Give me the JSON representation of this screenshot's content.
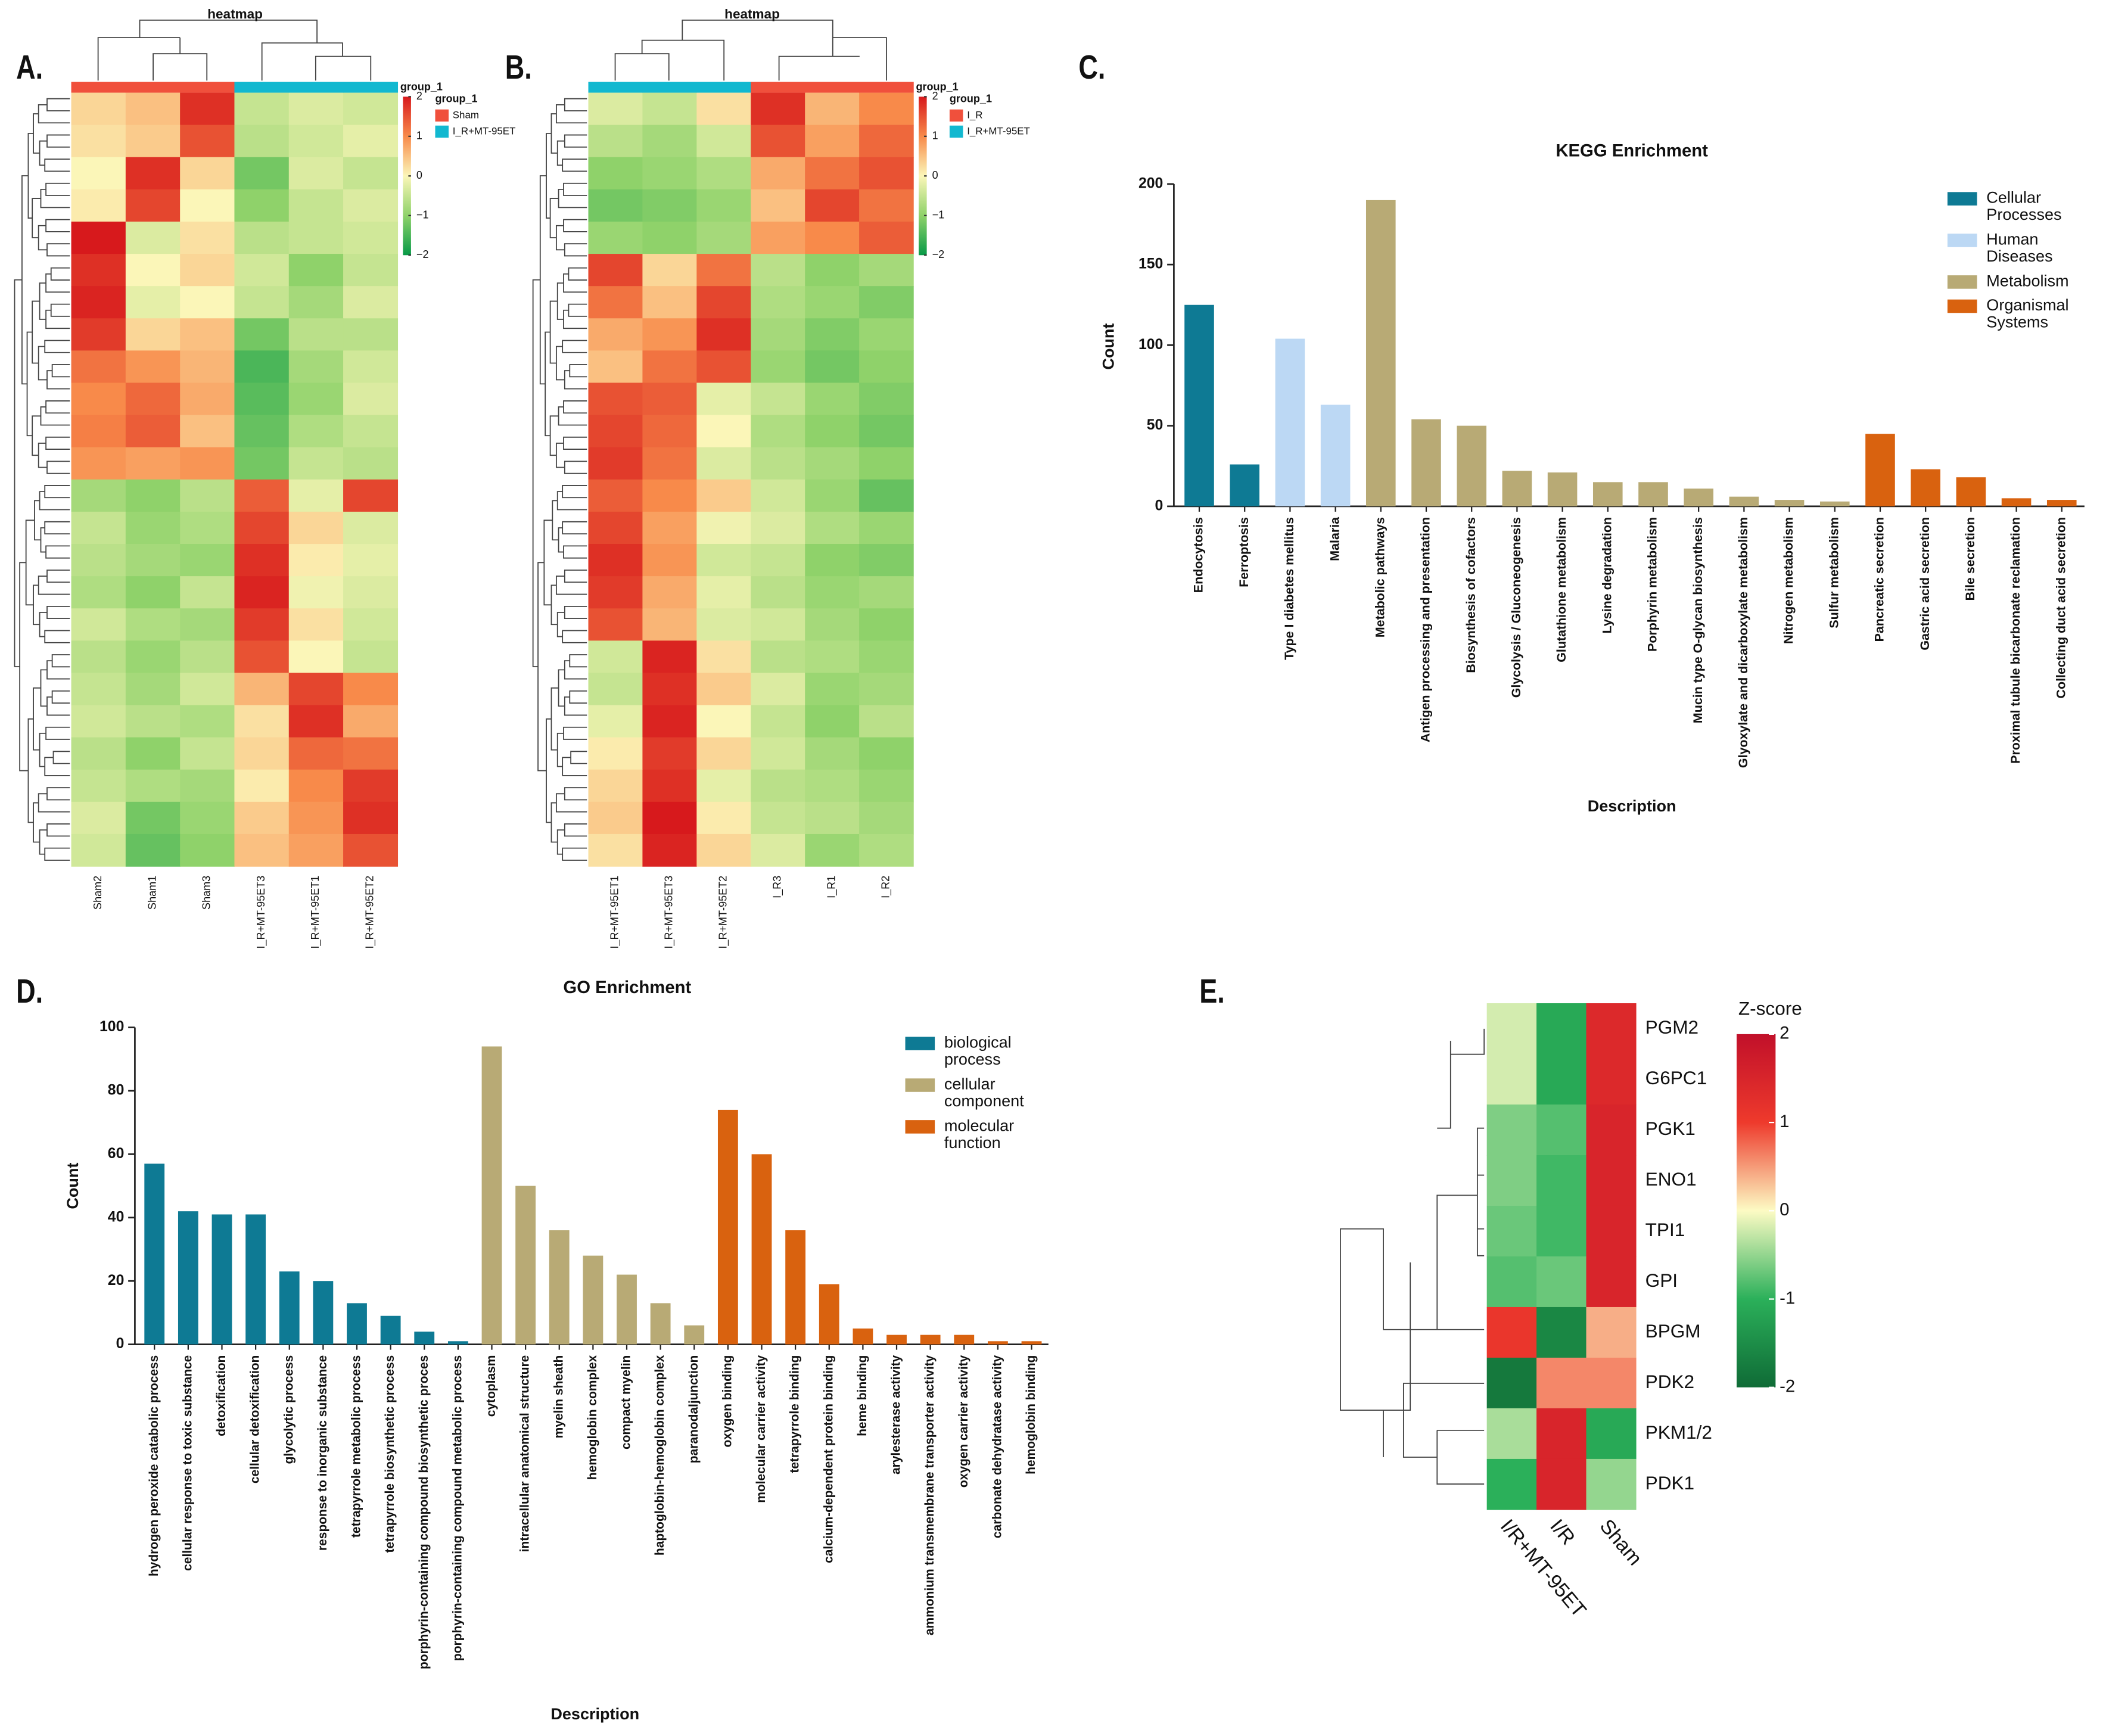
{
  "chart_data": [
    {
      "type": "heatmap",
      "panel": "A.",
      "title": "heatmap",
      "x": [
        "Sham2",
        "Sham1",
        "Sham3",
        "I_R+MT-95ET3",
        "I_R+MT-95ET1",
        "I_R+MT-95ET2"
      ],
      "group_label": "group_1",
      "legend": [
        {
          "name": "Sham",
          "color": "#f0503c"
        },
        {
          "name": "I_R+MT-95ET",
          "color": "#12b8d0"
        }
      ],
      "column_group": [
        0,
        0,
        0,
        1,
        1,
        1
      ],
      "z": [
        [
          0.3,
          0.5,
          1.8,
          -0.5,
          -0.3,
          -0.4
        ],
        [
          0.2,
          0.4,
          1.5,
          -0.6,
          -0.4,
          -0.2
        ],
        [
          0.0,
          1.8,
          0.3,
          -1.2,
          -0.3,
          -0.5
        ],
        [
          0.1,
          1.6,
          0.0,
          -1.0,
          -0.5,
          -0.3
        ],
        [
          2.0,
          -0.3,
          0.2,
          -0.6,
          -0.5,
          -0.4
        ],
        [
          1.8,
          0.0,
          0.3,
          -0.4,
          -1.0,
          -0.5
        ],
        [
          1.9,
          -0.2,
          0.0,
          -0.5,
          -0.8,
          -0.3
        ],
        [
          1.7,
          0.3,
          0.5,
          -1.2,
          -0.6,
          -0.6
        ],
        [
          1.2,
          0.9,
          0.6,
          -1.5,
          -0.8,
          -0.4
        ],
        [
          1.0,
          1.3,
          0.7,
          -1.4,
          -0.9,
          -0.3
        ],
        [
          1.1,
          1.4,
          0.5,
          -1.3,
          -0.7,
          -0.5
        ],
        [
          0.9,
          0.8,
          0.9,
          -1.2,
          -0.5,
          -0.6
        ],
        [
          -0.8,
          -1.0,
          -0.6,
          1.4,
          -0.2,
          1.6
        ],
        [
          -0.5,
          -0.9,
          -0.7,
          1.6,
          0.3,
          -0.3
        ],
        [
          -0.6,
          -0.8,
          -0.9,
          1.8,
          0.1,
          -0.2
        ],
        [
          -0.7,
          -1.0,
          -0.5,
          1.9,
          -0.1,
          -0.3
        ],
        [
          -0.4,
          -0.7,
          -0.8,
          1.7,
          0.2,
          -0.4
        ],
        [
          -0.6,
          -0.9,
          -0.6,
          1.5,
          0.0,
          -0.5
        ],
        [
          -0.5,
          -0.8,
          -0.4,
          0.6,
          1.6,
          1.0
        ],
        [
          -0.4,
          -0.6,
          -0.7,
          0.2,
          1.8,
          0.7
        ],
        [
          -0.6,
          -1.0,
          -0.5,
          0.3,
          1.3,
          1.2
        ],
        [
          -0.5,
          -0.7,
          -0.8,
          0.1,
          1.0,
          1.7
        ],
        [
          -0.3,
          -1.2,
          -0.9,
          0.4,
          0.9,
          1.8
        ],
        [
          -0.4,
          -1.3,
          -1.0,
          0.5,
          0.8,
          1.5
        ]
      ],
      "zlim": [
        -2,
        2
      ],
      "zticks": [
        2,
        1,
        0,
        {
          "value": -1,
          "label": "−1"
        },
        {
          "value": -2,
          "label": "−2"
        }
      ],
      "colors": [
        "#079a47",
        "#8fd26a",
        "#fbf6b8",
        "#f88a4a",
        "#d7191c"
      ]
    },
    {
      "type": "heatmap",
      "panel": "B.",
      "title": "heatmap",
      "x": [
        "I_R+MT-95ET1",
        "I_R+MT-95ET3",
        "I_R+MT-95ET2",
        "I_R3",
        "I_R1",
        "I_R2"
      ],
      "group_label": "group_1",
      "legend": [
        {
          "name": "I_R",
          "color": "#f0503c"
        },
        {
          "name": "I_R+MT-95ET",
          "color": "#12b8d0"
        }
      ],
      "column_group": [
        1,
        1,
        1,
        0,
        0,
        0
      ],
      "z": [
        [
          -0.3,
          -0.5,
          0.2,
          1.8,
          0.6,
          1.0
        ],
        [
          -0.6,
          -0.8,
          -0.4,
          1.5,
          0.8,
          1.3
        ],
        [
          -1.0,
          -0.9,
          -0.7,
          0.7,
          1.2,
          1.5
        ],
        [
          -1.2,
          -1.1,
          -0.9,
          0.5,
          1.6,
          1.2
        ],
        [
          -0.9,
          -1.0,
          -0.8,
          0.8,
          1.0,
          1.4
        ],
        [
          1.6,
          0.3,
          1.2,
          -0.6,
          -1.0,
          -0.8
        ],
        [
          1.2,
          0.5,
          1.6,
          -0.7,
          -0.9,
          -1.1
        ],
        [
          0.7,
          0.9,
          1.8,
          -0.8,
          -1.1,
          -0.9
        ],
        [
          0.5,
          1.2,
          1.5,
          -0.9,
          -1.2,
          -1.0
        ],
        [
          1.5,
          1.4,
          -0.2,
          -0.5,
          -0.9,
          -1.1
        ],
        [
          1.6,
          1.3,
          0.0,
          -0.7,
          -1.0,
          -1.2
        ],
        [
          1.7,
          1.2,
          -0.3,
          -0.6,
          -0.8,
          -1.0
        ],
        [
          1.4,
          1.0,
          0.4,
          -0.4,
          -0.9,
          -1.3
        ],
        [
          1.6,
          0.8,
          -0.1,
          -0.3,
          -0.7,
          -0.9
        ],
        [
          1.8,
          0.9,
          -0.4,
          -0.5,
          -1.0,
          -1.1
        ],
        [
          1.7,
          0.7,
          -0.2,
          -0.6,
          -0.9,
          -0.8
        ],
        [
          1.5,
          0.6,
          -0.3,
          -0.4,
          -0.8,
          -1.0
        ],
        [
          -0.4,
          1.9,
          0.2,
          -0.6,
          -0.7,
          -0.9
        ],
        [
          -0.5,
          1.8,
          0.4,
          -0.3,
          -0.9,
          -0.8
        ],
        [
          -0.2,
          1.9,
          0.0,
          -0.5,
          -1.0,
          -0.6
        ],
        [
          0.1,
          1.7,
          0.3,
          -0.4,
          -0.8,
          -1.0
        ],
        [
          0.3,
          1.8,
          -0.2,
          -0.6,
          -0.7,
          -0.9
        ],
        [
          0.4,
          2.0,
          0.1,
          -0.5,
          -0.6,
          -0.8
        ],
        [
          0.2,
          1.9,
          0.3,
          -0.3,
          -0.9,
          -0.7
        ]
      ],
      "zlim": [
        -2,
        2
      ],
      "zticks": [
        2,
        1,
        0,
        {
          "value": -1,
          "label": "−1"
        },
        {
          "value": -2,
          "label": "−2"
        }
      ],
      "colors": [
        "#079a47",
        "#8fd26a",
        "#fbf6b8",
        "#f88a4a",
        "#d7191c"
      ]
    },
    {
      "type": "bar",
      "panel": "C.",
      "title": "KEGG Enrichment",
      "xlabel": "Description",
      "ylabel": "Count",
      "categories": [
        "Endocytosis",
        "Ferroptosis",
        "Type I diabetes mellitus",
        "Malaria",
        "Metabolic pathways",
        "Antigen processing and presentation",
        "Biosynthesis of cofactors",
        "Glycolysis / Gluconeogenesis",
        "Glutathione metabolism",
        "Lysine degradation",
        "Porphyrin metabolism",
        "Mucin type O-glycan biosynthesis",
        "Glyoxylate and dicarboxylate metabolism",
        "Nitrogen metabolism",
        "Sulfur metabolism",
        "Pancreatic secretion",
        "Gastric acid secretion",
        "Bile secretion",
        "Proximal tubule bicarbonate reclamation",
        "Collecting duct acid secretion"
      ],
      "series": [
        {
          "name": "Cellular Processes",
          "color": "#0e7a94",
          "values": [
            125,
            26,
            null,
            null,
            null,
            null,
            null,
            null,
            null,
            null,
            null,
            null,
            null,
            null,
            null,
            null,
            null,
            null,
            null,
            null
          ]
        },
        {
          "name": "Human Diseases",
          "color": "#bcd8f4",
          "values": [
            null,
            null,
            104,
            63,
            null,
            null,
            null,
            null,
            null,
            null,
            null,
            null,
            null,
            null,
            null,
            null,
            null,
            null,
            null,
            null
          ]
        },
        {
          "name": "Metabolism",
          "color": "#b8aa75",
          "values": [
            null,
            null,
            null,
            null,
            190,
            54,
            50,
            22,
            21,
            15,
            15,
            11,
            6,
            4,
            3,
            null,
            null,
            null,
            null,
            null
          ]
        },
        {
          "name": "Organismal Systems",
          "color": "#d9620f",
          "values": [
            null,
            null,
            null,
            null,
            null,
            null,
            null,
            null,
            null,
            null,
            null,
            null,
            null,
            null,
            null,
            45,
            23,
            18,
            5,
            4
          ]
        }
      ],
      "ylim": [
        0,
        200
      ],
      "yticks": [
        0,
        50,
        100,
        150,
        200
      ]
    },
    {
      "type": "bar",
      "panel": "D.",
      "title": "GO Enrichment",
      "xlabel": "Description",
      "ylabel": "Count",
      "categories": [
        "hydrogen peroxide catabolic process",
        "cellular response to toxic substance",
        "detoxification",
        "cellular detoxification",
        "glycolytic process",
        "response to inorganic substance",
        "tetrapyrrole metabolic process",
        "tetrapyrrole biosynthetic process",
        "porphyrin-containing compound biosynthetic proces",
        "porphyrin-containing compound metabolic process",
        "cytoplasm",
        "intracellular anatomical structure",
        "myelin sheath",
        "hemoglobin complex",
        "compact myelin",
        "haptoglobin-hemoglobin complex",
        "paranodaljunction",
        "oxygen binding",
        "molecular carrier activity",
        "tetrapyrrole binding",
        "calcium-dependent protein binding",
        "heme binding",
        "arylesterase activity",
        "ammonium transmembrane transporter activity",
        "oxygen carrier activity",
        "carbonate dehydratase activity",
        "hemoglobin binding"
      ],
      "series": [
        {
          "name": "biological process",
          "color": "#0e7a94",
          "values": [
            57,
            42,
            41,
            41,
            23,
            20,
            13,
            9,
            4,
            1,
            null,
            null,
            null,
            null,
            null,
            null,
            null,
            null,
            null,
            null,
            null,
            null,
            null,
            null,
            null,
            null,
            null
          ]
        },
        {
          "name": "cellular component",
          "color": "#b8aa75",
          "values": [
            null,
            null,
            null,
            null,
            null,
            null,
            null,
            null,
            null,
            null,
            94,
            50,
            36,
            28,
            22,
            13,
            6,
            null,
            null,
            null,
            null,
            null,
            null,
            null,
            null,
            null,
            null
          ]
        },
        {
          "name": "molecular function",
          "color": "#d9620f",
          "values": [
            null,
            null,
            null,
            null,
            null,
            null,
            null,
            null,
            null,
            null,
            null,
            null,
            null,
            null,
            null,
            null,
            null,
            74,
            60,
            36,
            19,
            5,
            3,
            3,
            3,
            1,
            1
          ]
        }
      ],
      "ylim": [
        0,
        100
      ],
      "yticks": [
        0,
        20,
        40,
        60,
        80,
        100
      ]
    },
    {
      "type": "heatmap",
      "panel": "E.",
      "x": [
        "I/R+MT-95ET",
        "I/R",
        "Sham"
      ],
      "y": [
        "PGM2",
        "G6PC1",
        "PGK1",
        "ENO1",
        "TPI1",
        "GPI",
        "BPGM",
        "PDK2",
        "PKM1/2",
        "PDK1"
      ],
      "z": [
        [
          -0.2,
          -1.1,
          1.4
        ],
        [
          -0.2,
          -1.1,
          1.4
        ],
        [
          -0.6,
          -0.8,
          1.5
        ],
        [
          -0.6,
          -0.9,
          1.5
        ],
        [
          -0.7,
          -0.9,
          1.5
        ],
        [
          -0.8,
          -0.7,
          1.5
        ],
        [
          1.1,
          -1.6,
          0.4
        ],
        [
          -1.8,
          0.6,
          0.6
        ],
        [
          -0.4,
          1.5,
          -1.1
        ],
        [
          -1.0,
          1.5,
          -0.5
        ]
      ],
      "legend_title": "Z-score",
      "zlim": [
        -2,
        2
      ],
      "zticks": [
        2,
        1,
        0,
        -1,
        -2
      ],
      "colors": [
        "#0f6b36",
        "#2bb05a",
        "#fdfbc4",
        "#ee3a2c",
        "#c1102a"
      ]
    }
  ]
}
